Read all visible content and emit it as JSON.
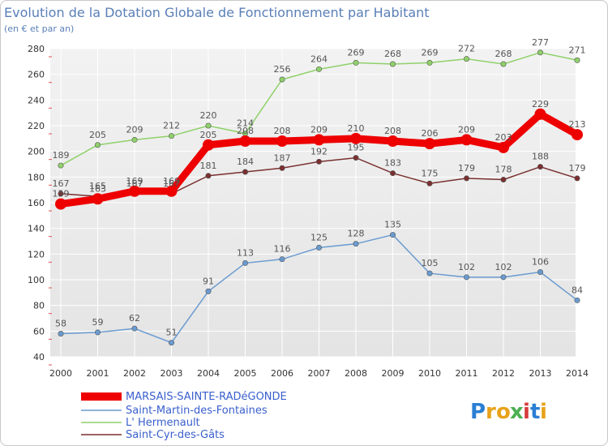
{
  "chart_data": {
    "type": "line",
    "title": "Evolution de la Dotation Globale de Fonctionnement par Habitant",
    "subtitle": "(en € et par an)",
    "x": [
      "2000",
      "2001",
      "2002",
      "2003",
      "2004",
      "2005",
      "2006",
      "2007",
      "2008",
      "2009",
      "2010",
      "2011",
      "2012",
      "2013",
      "2014"
    ],
    "ylim": [
      40,
      280
    ],
    "yticks": [
      40,
      60,
      80,
      100,
      120,
      140,
      160,
      180,
      200,
      220,
      240,
      260,
      280
    ],
    "grid": true,
    "series": [
      {
        "name": "MARSAIS-SAINTE-RADéGONDE",
        "color": "#ee0000",
        "highlight": true,
        "values": [
          159,
          163,
          169,
          169,
          205,
          208,
          208,
          209,
          210,
          208,
          206,
          209,
          203,
          229,
          213
        ]
      },
      {
        "name": "Saint-Martin-des-Fontaines",
        "color": "#6a9bd0",
        "values": [
          58,
          59,
          62,
          51,
          91,
          113,
          116,
          125,
          128,
          135,
          105,
          102,
          102,
          106,
          84
        ]
      },
      {
        "name": "L' Hermenault",
        "color": "#8fd16a",
        "values": [
          189,
          205,
          209,
          212,
          220,
          214,
          256,
          264,
          269,
          268,
          269,
          272,
          268,
          277,
          271
        ]
      },
      {
        "name": "Saint-Cyr-des-Gâts",
        "color": "#7a3030",
        "values": [
          167,
          165,
          167,
          167,
          181,
          184,
          187,
          192,
          195,
          183,
          175,
          179,
          178,
          188,
          179
        ]
      }
    ]
  },
  "brand": {
    "name": "Proxiti",
    "colors": [
      "#2a7fd4",
      "#e8a21a",
      "#e8a21a",
      "#4caf50",
      "#d63b3b",
      "#2a7fd4",
      "#e8a21a"
    ]
  }
}
